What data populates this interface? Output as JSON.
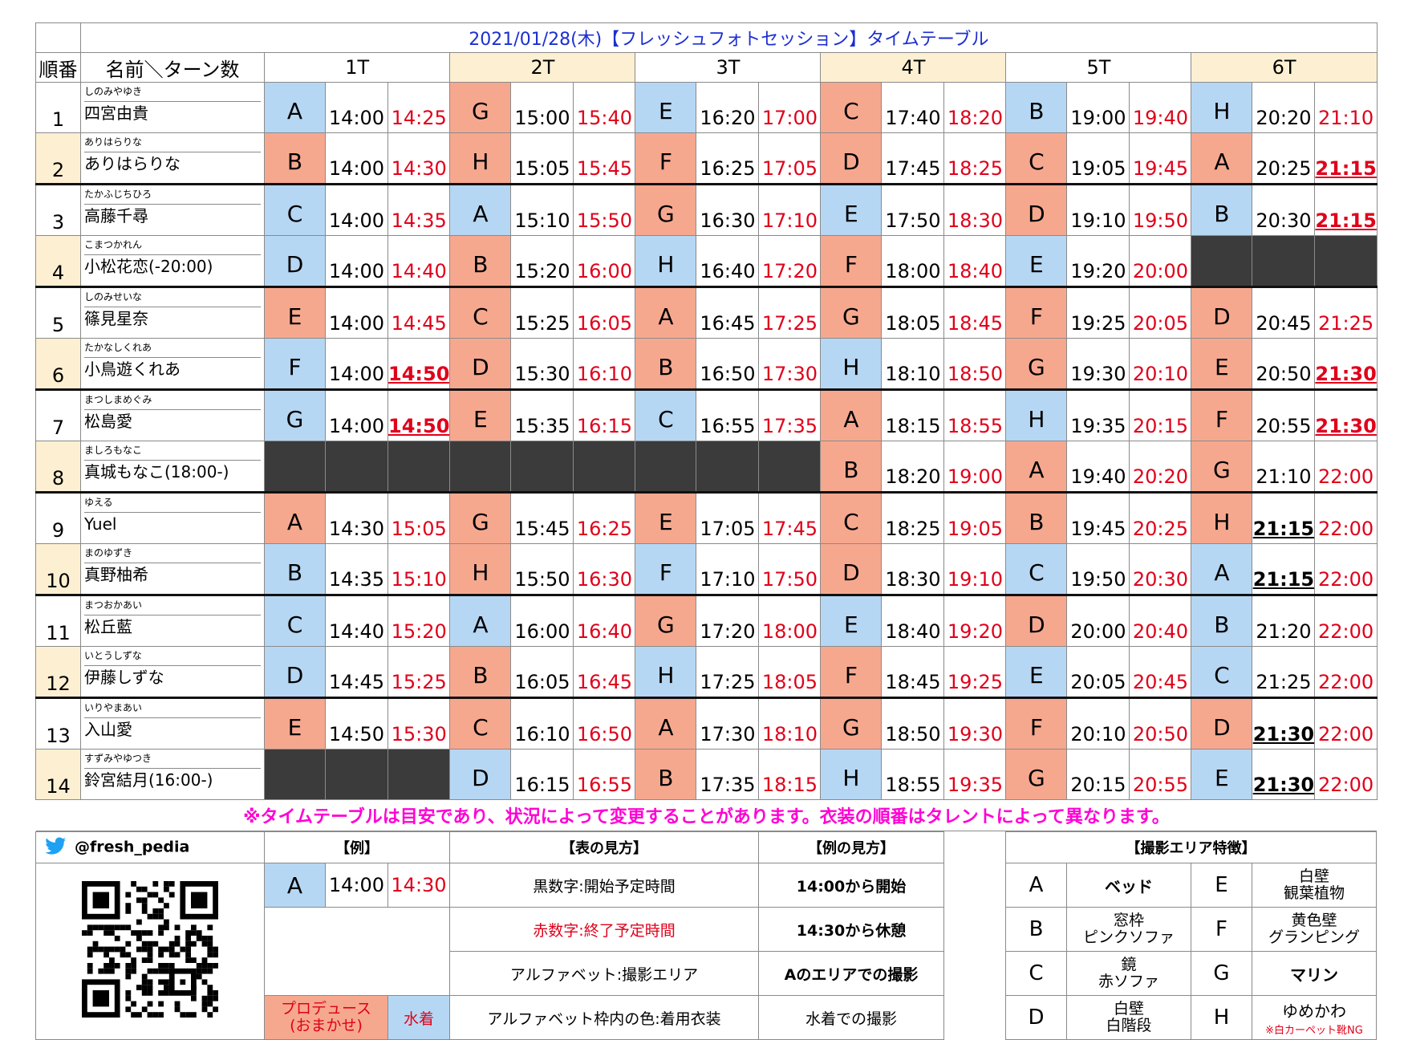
{
  "title": "2021/01/28(木)【フレッシュフォトセッション】タイムテーブル",
  "header": {
    "order": "順番",
    "name_turns": "名前＼ターン数",
    "turns": [
      "1T",
      "2T",
      "3T",
      "4T",
      "5T",
      "6T"
    ]
  },
  "colors": {
    "blue": "#b6d7f3",
    "salmon": "#f6a88f",
    "dark": "#3b3b3b",
    "red": "#e0001a",
    "note": "#ff00d4",
    "title": "#1c2fd0",
    "highlight": "#fdf0d2"
  },
  "rows": [
    {
      "no": "1",
      "ruby": "しのみやゆき",
      "name": "四宮由貴",
      "cells": [
        {
          "a": "A",
          "c": "blue",
          "s": "14:00",
          "e": "14:25"
        },
        {
          "a": "G",
          "c": "salmon",
          "s": "15:00",
          "e": "15:40"
        },
        {
          "a": "E",
          "c": "blue",
          "s": "16:20",
          "e": "17:00"
        },
        {
          "a": "C",
          "c": "salmon",
          "s": "17:40",
          "e": "18:20"
        },
        {
          "a": "B",
          "c": "blue",
          "s": "19:00",
          "e": "19:40"
        },
        {
          "a": "H",
          "c": "blue",
          "s": "20:20",
          "e": "21:10"
        }
      ]
    },
    {
      "no": "2",
      "ruby": "ありはらりな",
      "name": "ありはらりな",
      "cells": [
        {
          "a": "B",
          "c": "salmon",
          "s": "14:00",
          "e": "14:30"
        },
        {
          "a": "H",
          "c": "salmon",
          "s": "15:05",
          "e": "15:45"
        },
        {
          "a": "F",
          "c": "salmon",
          "s": "16:25",
          "e": "17:05"
        },
        {
          "a": "D",
          "c": "salmon",
          "s": "17:45",
          "e": "18:25"
        },
        {
          "a": "C",
          "c": "salmon",
          "s": "19:05",
          "e": "19:45"
        },
        {
          "a": "A",
          "c": "salmon",
          "s": "20:25",
          "e": "21:15",
          "eu": true
        }
      ]
    },
    {
      "no": "3",
      "ruby": "たかふじちひろ",
      "name": "高藤千尋",
      "cells": [
        {
          "a": "C",
          "c": "blue",
          "s": "14:00",
          "e": "14:35"
        },
        {
          "a": "A",
          "c": "blue",
          "s": "15:10",
          "e": "15:50"
        },
        {
          "a": "G",
          "c": "salmon",
          "s": "16:30",
          "e": "17:10"
        },
        {
          "a": "E",
          "c": "blue",
          "s": "17:50",
          "e": "18:30"
        },
        {
          "a": "D",
          "c": "salmon",
          "s": "19:10",
          "e": "19:50"
        },
        {
          "a": "B",
          "c": "blue",
          "s": "20:30",
          "e": "21:15",
          "eu": true
        }
      ]
    },
    {
      "no": "4",
      "ruby": "こまつかれん",
      "name": "小松花恋(-20:00)",
      "cells": [
        {
          "a": "D",
          "c": "blue",
          "s": "14:00",
          "e": "14:40"
        },
        {
          "a": "B",
          "c": "salmon",
          "s": "15:20",
          "e": "16:00"
        },
        {
          "a": "H",
          "c": "blue",
          "s": "16:40",
          "e": "17:20"
        },
        {
          "a": "F",
          "c": "salmon",
          "s": "18:00",
          "e": "18:40"
        },
        {
          "a": "E",
          "c": "blue",
          "s": "19:20",
          "e": "20:00"
        },
        {
          "dark": true
        }
      ]
    },
    {
      "no": "5",
      "ruby": "しのみせいな",
      "name": "篠見星奈",
      "cells": [
        {
          "a": "E",
          "c": "salmon",
          "s": "14:00",
          "e": "14:45"
        },
        {
          "a": "C",
          "c": "salmon",
          "s": "15:25",
          "e": "16:05"
        },
        {
          "a": "A",
          "c": "salmon",
          "s": "16:45",
          "e": "17:25"
        },
        {
          "a": "G",
          "c": "salmon",
          "s": "18:05",
          "e": "18:45"
        },
        {
          "a": "F",
          "c": "salmon",
          "s": "19:25",
          "e": "20:05"
        },
        {
          "a": "D",
          "c": "salmon",
          "s": "20:45",
          "e": "21:25"
        }
      ]
    },
    {
      "no": "6",
      "ruby": "たかなしくれあ",
      "name": "小鳥遊くれあ",
      "cells": [
        {
          "a": "F",
          "c": "blue",
          "s": "14:00",
          "e": "14:50",
          "eu": true
        },
        {
          "a": "D",
          "c": "salmon",
          "s": "15:30",
          "e": "16:10"
        },
        {
          "a": "B",
          "c": "salmon",
          "s": "16:50",
          "e": "17:30"
        },
        {
          "a": "H",
          "c": "blue",
          "s": "18:10",
          "e": "18:50"
        },
        {
          "a": "G",
          "c": "salmon",
          "s": "19:30",
          "e": "20:10"
        },
        {
          "a": "E",
          "c": "salmon",
          "s": "20:50",
          "e": "21:30",
          "eu": true
        }
      ]
    },
    {
      "no": "7",
      "ruby": "まつしまめぐみ",
      "name": "松島愛",
      "cells": [
        {
          "a": "G",
          "c": "blue",
          "s": "14:00",
          "e": "14:50",
          "eu": true
        },
        {
          "a": "E",
          "c": "salmon",
          "s": "15:35",
          "e": "16:15"
        },
        {
          "a": "C",
          "c": "blue",
          "s": "16:55",
          "e": "17:35"
        },
        {
          "a": "A",
          "c": "salmon",
          "s": "18:15",
          "e": "18:55"
        },
        {
          "a": "H",
          "c": "blue",
          "s": "19:35",
          "e": "20:15"
        },
        {
          "a": "F",
          "c": "salmon",
          "s": "20:55",
          "e": "21:30",
          "eu": true
        }
      ]
    },
    {
      "no": "8",
      "ruby": "ましろもなこ",
      "name": "真城もなこ(18:00-)",
      "cells": [
        {
          "dark": true
        },
        {
          "dark": true
        },
        {
          "dark": true
        },
        {
          "a": "B",
          "c": "salmon",
          "s": "18:20",
          "e": "19:00"
        },
        {
          "a": "A",
          "c": "salmon",
          "s": "19:40",
          "e": "20:20"
        },
        {
          "a": "G",
          "c": "salmon",
          "s": "21:10",
          "e": "22:00"
        }
      ]
    },
    {
      "no": "9",
      "ruby": "ゆえる",
      "name": "Yuel",
      "cells": [
        {
          "a": "A",
          "c": "salmon",
          "s": "14:30",
          "e": "15:05"
        },
        {
          "a": "G",
          "c": "salmon",
          "s": "15:45",
          "e": "16:25"
        },
        {
          "a": "E",
          "c": "salmon",
          "s": "17:05",
          "e": "17:45"
        },
        {
          "a": "C",
          "c": "salmon",
          "s": "18:25",
          "e": "19:05"
        },
        {
          "a": "B",
          "c": "salmon",
          "s": "19:45",
          "e": "20:25"
        },
        {
          "a": "H",
          "c": "salmon",
          "s": "21:15",
          "e": "22:00",
          "su": true
        }
      ]
    },
    {
      "no": "10",
      "ruby": "まのゆずき",
      "name": "真野柚希",
      "cells": [
        {
          "a": "B",
          "c": "blue",
          "s": "14:35",
          "e": "15:10"
        },
        {
          "a": "H",
          "c": "salmon",
          "s": "15:50",
          "e": "16:30"
        },
        {
          "a": "F",
          "c": "blue",
          "s": "17:10",
          "e": "17:50"
        },
        {
          "a": "D",
          "c": "salmon",
          "s": "18:30",
          "e": "19:10"
        },
        {
          "a": "C",
          "c": "blue",
          "s": "19:50",
          "e": "20:30"
        },
        {
          "a": "A",
          "c": "blue",
          "s": "21:15",
          "e": "22:00",
          "su": true
        }
      ]
    },
    {
      "no": "11",
      "ruby": "まつおかあい",
      "name": "松丘藍",
      "cells": [
        {
          "a": "C",
          "c": "blue",
          "s": "14:40",
          "e": "15:20"
        },
        {
          "a": "A",
          "c": "blue",
          "s": "16:00",
          "e": "16:40"
        },
        {
          "a": "G",
          "c": "salmon",
          "s": "17:20",
          "e": "18:00"
        },
        {
          "a": "E",
          "c": "blue",
          "s": "18:40",
          "e": "19:20"
        },
        {
          "a": "D",
          "c": "salmon",
          "s": "20:00",
          "e": "20:40"
        },
        {
          "a": "B",
          "c": "blue",
          "s": "21:20",
          "e": "22:00"
        }
      ]
    },
    {
      "no": "12",
      "ruby": "いとうしずな",
      "name": "伊藤しずな",
      "cells": [
        {
          "a": "D",
          "c": "blue",
          "s": "14:45",
          "e": "15:25"
        },
        {
          "a": "B",
          "c": "salmon",
          "s": "16:05",
          "e": "16:45"
        },
        {
          "a": "H",
          "c": "blue",
          "s": "17:25",
          "e": "18:05"
        },
        {
          "a": "F",
          "c": "salmon",
          "s": "18:45",
          "e": "19:25"
        },
        {
          "a": "E",
          "c": "blue",
          "s": "20:05",
          "e": "20:45"
        },
        {
          "a": "C",
          "c": "blue",
          "s": "21:25",
          "e": "22:00"
        }
      ]
    },
    {
      "no": "13",
      "ruby": "いりやまあい",
      "name": "入山愛",
      "cells": [
        {
          "a": "E",
          "c": "salmon",
          "s": "14:50",
          "e": "15:30"
        },
        {
          "a": "C",
          "c": "salmon",
          "s": "16:10",
          "e": "16:50"
        },
        {
          "a": "A",
          "c": "salmon",
          "s": "17:30",
          "e": "18:10"
        },
        {
          "a": "G",
          "c": "salmon",
          "s": "18:50",
          "e": "19:30"
        },
        {
          "a": "F",
          "c": "salmon",
          "s": "20:10",
          "e": "20:50"
        },
        {
          "a": "D",
          "c": "salmon",
          "s": "21:30",
          "e": "22:00",
          "su": true
        }
      ]
    },
    {
      "no": "14",
      "ruby": "すずみやゆつき",
      "name": "鈴宮結月(16:00-)",
      "cells": [
        {
          "dark": true
        },
        {
          "a": "D",
          "c": "blue",
          "s": "16:15",
          "e": "16:55"
        },
        {
          "a": "B",
          "c": "salmon",
          "s": "17:35",
          "e": "18:15"
        },
        {
          "a": "H",
          "c": "blue",
          "s": "18:55",
          "e": "19:35"
        },
        {
          "a": "G",
          "c": "salmon",
          "s": "20:15",
          "e": "20:55"
        },
        {
          "a": "E",
          "c": "blue",
          "s": "21:30",
          "e": "22:00",
          "su": true
        }
      ]
    }
  ],
  "note": "※タイムテーブルは目安であり、状況によって変更することがあります。衣装の順番はタレントによって異なります。",
  "legend": {
    "twitter_handle": "@fresh_pedia",
    "icons": {
      "twitter": "twitter-bird-icon",
      "qr": "qr-code-icon"
    },
    "example_header": "【例】",
    "how_header": "【表の見方】",
    "example_how_header": "【例の見方】",
    "example": {
      "area": "A",
      "start": "14:00",
      "end": "14:30"
    },
    "how": [
      "黒数字:開始予定時間",
      "赤数字:終了予定時間",
      "アルファベット:撮影エリア",
      "アルファベット枠内の色:着用衣装"
    ],
    "example_how": [
      "14:00から開始",
      "14:30から休憩",
      "Aのエリアでの撮影",
      "水着での撮影"
    ],
    "produce_l1": "プロデュース",
    "produce_l2": "(おまかせ)",
    "swimsuit": "水着",
    "area_header": "【撮影エリア特徴】",
    "areas": [
      {
        "l": "A",
        "d1": "ベッド",
        "d2": "",
        "r": "E",
        "r1": "白壁",
        "r2": "観葉植物"
      },
      {
        "l": "B",
        "d1": "窓枠",
        "d2": "ピンクソファ",
        "r": "F",
        "r1": "黄色壁",
        "r2": "グランピング"
      },
      {
        "l": "C",
        "d1": "鏡",
        "d2": "赤ソファ",
        "r": "G",
        "r1": "マリン",
        "r2": ""
      },
      {
        "l": "D",
        "d1": "白壁",
        "d2": "白階段",
        "r": "H",
        "r1": "ゆめかわ",
        "r2": "※白カーペット靴NG"
      }
    ]
  }
}
